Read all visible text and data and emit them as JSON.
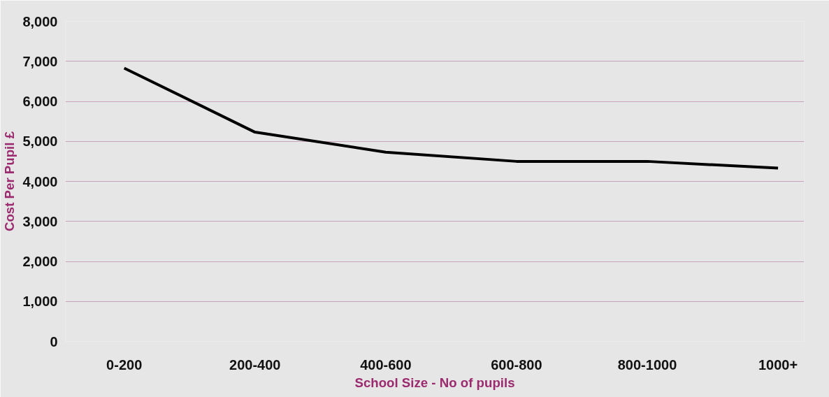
{
  "chart_data": {
    "type": "line",
    "xlabel": "School Size - No of pupils",
    "ylabel": "Cost Per Pupil £",
    "categories": [
      "0-200",
      "200-400",
      "400-600",
      "600-800",
      "800-1000",
      "1000+"
    ],
    "series": [
      {
        "color": "#000000",
        "values": [
          6830,
          5230,
          4730,
          4500,
          4500,
          4330
        ]
      }
    ],
    "ylim": [
      0,
      8000
    ],
    "yticks": [
      0,
      {
        "value": 1000,
        "label": "1,000"
      },
      {
        "value": 2000,
        "label": "2,000"
      },
      {
        "value": 3000,
        "label": "3,000"
      },
      {
        "value": 4000,
        "label": "4,000"
      },
      {
        "value": 5000,
        "label": "5,000"
      },
      {
        "value": 6000,
        "label": "6,000"
      },
      {
        "value": 7000,
        "label": "7,000"
      },
      {
        "value": 8000,
        "label": "8,000"
      }
    ],
    "grid": "y",
    "marker": "none",
    "line_style": "solid"
  }
}
